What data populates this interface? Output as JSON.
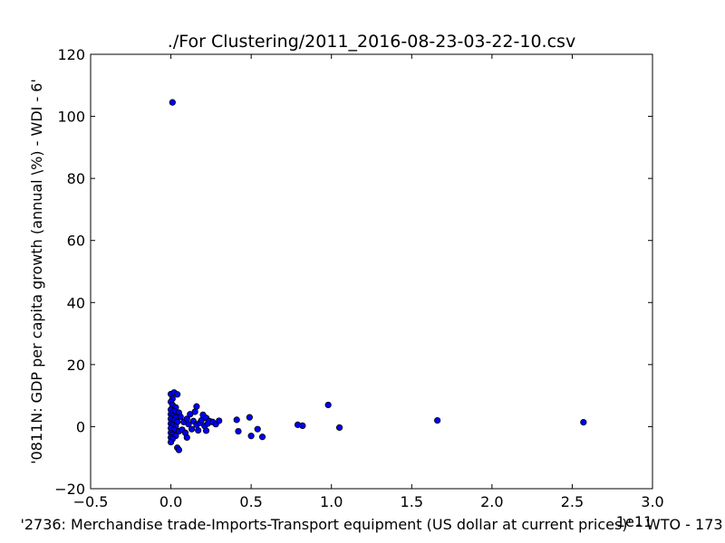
{
  "chart_data": {
    "type": "scatter",
    "title": "./For Clustering/2011_2016-08-23-03-22-10.csv",
    "xlabel": "'2736: Merchandise trade-Imports-Transport equipment (US dollar at current prices)' - WTO - 173",
    "ylabel": "'0811N: GDP per capita growth  (annual \\%) - WDI - 6'",
    "x_offset_label": "1e11",
    "xlim": [
      -0.5,
      3.0
    ],
    "ylim": [
      -20,
      120
    ],
    "x_unit_multiplier": 100000000000.0,
    "xticks": [
      -0.5,
      0.0,
      0.5,
      1.0,
      1.5,
      2.0,
      2.5,
      3.0
    ],
    "xtick_labels": [
      "−0.5",
      "0.0",
      "0.5",
      "1.0",
      "1.5",
      "2.0",
      "2.5",
      "3.0"
    ],
    "yticks": [
      -20,
      0,
      20,
      40,
      60,
      80,
      100,
      120
    ],
    "ytick_labels": [
      "−20",
      "0",
      "20",
      "40",
      "60",
      "80",
      "100",
      "120"
    ],
    "grid": false,
    "marker_color": "#0000ff",
    "marker_edge": "#000000",
    "points": [
      {
        "x": 0.01,
        "y": 104.5
      },
      {
        "x": 0.0,
        "y": 10.5
      },
      {
        "x": 0.02,
        "y": 11.0
      },
      {
        "x": 0.04,
        "y": 10.4
      },
      {
        "x": 0.01,
        "y": 9.0
      },
      {
        "x": 0.0,
        "y": 8.0
      },
      {
        "x": 0.01,
        "y": 7.0
      },
      {
        "x": 0.03,
        "y": 6.2
      },
      {
        "x": 0.0,
        "y": 5.5
      },
      {
        "x": 0.02,
        "y": 5.0
      },
      {
        "x": 0.05,
        "y": 4.5
      },
      {
        "x": 0.0,
        "y": 4.0
      },
      {
        "x": 0.01,
        "y": 3.5
      },
      {
        "x": 0.03,
        "y": 3.0
      },
      {
        "x": 0.0,
        "y": 2.5
      },
      {
        "x": 0.02,
        "y": 2.0
      },
      {
        "x": 0.04,
        "y": 1.5
      },
      {
        "x": 0.0,
        "y": 1.0
      },
      {
        "x": 0.01,
        "y": 0.5
      },
      {
        "x": 0.03,
        "y": 0.0
      },
      {
        "x": 0.0,
        "y": -0.5
      },
      {
        "x": 0.02,
        "y": -1.0
      },
      {
        "x": 0.05,
        "y": -1.5
      },
      {
        "x": 0.0,
        "y": -2.0
      },
      {
        "x": 0.01,
        "y": -2.5
      },
      {
        "x": 0.03,
        "y": -3.0
      },
      {
        "x": 0.0,
        "y": -3.5
      },
      {
        "x": 0.01,
        "y": -4.0
      },
      {
        "x": 0.0,
        "y": -5.0
      },
      {
        "x": 0.04,
        "y": -6.8
      },
      {
        "x": 0.05,
        "y": -7.5
      },
      {
        "x": 0.06,
        "y": 3.2
      },
      {
        "x": 0.07,
        "y": -1.0
      },
      {
        "x": 0.08,
        "y": 1.5
      },
      {
        "x": 0.09,
        "y": -2.0
      },
      {
        "x": 0.1,
        "y": 2.5
      },
      {
        "x": 0.1,
        "y": -3.5
      },
      {
        "x": 0.11,
        "y": 0.8
      },
      {
        "x": 0.12,
        "y": 4.0
      },
      {
        "x": 0.13,
        "y": -0.8
      },
      {
        "x": 0.14,
        "y": 1.8
      },
      {
        "x": 0.15,
        "y": 4.8
      },
      {
        "x": 0.16,
        "y": 0.6
      },
      {
        "x": 0.16,
        "y": 6.5
      },
      {
        "x": 0.17,
        "y": -1.2
      },
      {
        "x": 0.18,
        "y": 1.2
      },
      {
        "x": 0.19,
        "y": 2.0
      },
      {
        "x": 0.2,
        "y": 3.8
      },
      {
        "x": 0.21,
        "y": 0.2
      },
      {
        "x": 0.22,
        "y": 2.8
      },
      {
        "x": 0.22,
        "y": -1.3
      },
      {
        "x": 0.23,
        "y": 1.0
      },
      {
        "x": 0.24,
        "y": 1.8
      },
      {
        "x": 0.26,
        "y": 1.5
      },
      {
        "x": 0.28,
        "y": 0.8
      },
      {
        "x": 0.3,
        "y": 1.9
      },
      {
        "x": 0.41,
        "y": 2.2
      },
      {
        "x": 0.42,
        "y": -1.5
      },
      {
        "x": 0.49,
        "y": 3.0
      },
      {
        "x": 0.5,
        "y": -3.0
      },
      {
        "x": 0.54,
        "y": -0.8
      },
      {
        "x": 0.57,
        "y": -3.3
      },
      {
        "x": 0.79,
        "y": 0.6
      },
      {
        "x": 0.82,
        "y": 0.3
      },
      {
        "x": 0.98,
        "y": 7.0
      },
      {
        "x": 1.05,
        "y": -0.3
      },
      {
        "x": 1.66,
        "y": 2.0
      },
      {
        "x": 2.57,
        "y": 1.4
      }
    ]
  }
}
